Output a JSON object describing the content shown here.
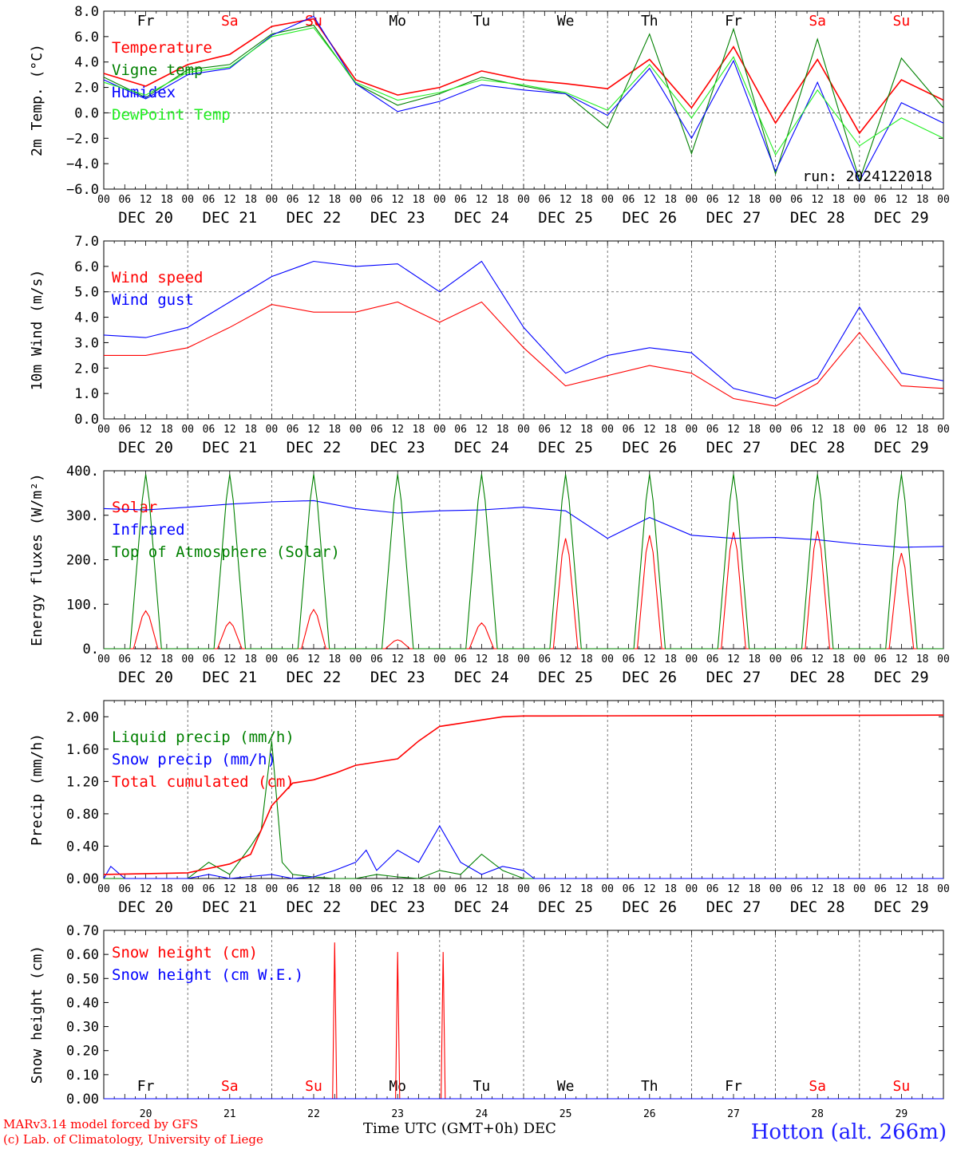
{
  "footer": {
    "model": "MARv3.14 model forced by GFS",
    "copyright": "(c) Lab. of Climatology, University of Liege",
    "station": "Hotton (alt. 266m)",
    "xaxis_title": "Time UTC (GMT+0h) DEC"
  },
  "colors": {
    "red": "#ff0000",
    "darkgreen": "#008000",
    "blue": "#0000ff",
    "lightgreen": "#22ee22",
    "black": "#000000"
  },
  "axis": {
    "hour_ticks": [
      "00",
      "06",
      "12",
      "18"
    ],
    "day_labels": [
      "DEC 20",
      "DEC 21",
      "DEC 22",
      "DEC 23",
      "DEC 24",
      "DEC 25",
      "DEC 26",
      "DEC 27",
      "DEC 28",
      "DEC 29"
    ],
    "weekdays": [
      "Fr",
      "Sa",
      "Su",
      "Mo",
      "Tu",
      "We",
      "Th",
      "Fr",
      "Sa",
      "Su"
    ],
    "weekday_colors": [
      "#000000",
      "#ff0000",
      "#ff0000",
      "#000000",
      "#000000",
      "#000000",
      "#000000",
      "#000000",
      "#ff0000",
      "#ff0000"
    ],
    "day_numbers": [
      "20",
      "21",
      "22",
      "23",
      "24",
      "25",
      "26",
      "27",
      "28",
      "29"
    ]
  },
  "chart_data": [
    {
      "type": "line",
      "ylabel": "2m Temp. (°C)",
      "ylim": [
        -6,
        8
      ],
      "yticks": [
        "8.0",
        "6.0",
        "4.0",
        "2.0",
        "0.0",
        "−2.0",
        "−4.0",
        "−6.0"
      ],
      "annotation": "run: 2024122018",
      "reference_line": 0,
      "x_hours": [
        0,
        12,
        24,
        36,
        48,
        60,
        72,
        84,
        96,
        108,
        120,
        132,
        144,
        156,
        168,
        180,
        192,
        204,
        216,
        228,
        240
      ],
      "series": [
        {
          "name": "Temperature",
          "color": "#ff0000",
          "values": [
            3.1,
            2.1,
            3.8,
            4.6,
            6.8,
            7.4,
            2.6,
            1.4,
            2.0,
            3.3,
            2.6,
            2.3,
            1.9,
            4.2,
            0.4,
            5.2,
            -0.8,
            4.2,
            -1.6,
            2.6,
            1.0
          ]
        },
        {
          "name": "Vigne temp",
          "color": "#008000",
          "values": [
            2.8,
            1.2,
            3.4,
            3.8,
            6.2,
            6.9,
            2.3,
            0.6,
            1.5,
            2.8,
            2.1,
            1.5,
            -1.2,
            6.2,
            -3.2,
            6.6,
            -4.8,
            5.8,
            -5.3,
            4.3,
            0.4
          ]
        },
        {
          "name": "Humidex",
          "color": "#0000ff",
          "values": [
            2.6,
            1.1,
            3.0,
            3.5,
            6.1,
            7.6,
            2.3,
            0.1,
            0.9,
            2.2,
            1.8,
            1.5,
            -0.2,
            3.5,
            -2.0,
            4.1,
            -4.6,
            2.4,
            -5.4,
            0.8,
            -0.8
          ]
        },
        {
          "name": "DewPoint Temp",
          "color": "#22ee22",
          "values": [
            2.4,
            1.4,
            3.2,
            3.6,
            6.0,
            6.7,
            2.4,
            1.0,
            1.6,
            2.6,
            2.2,
            1.6,
            0.2,
            3.8,
            -0.4,
            4.4,
            -3.3,
            1.8,
            -2.6,
            -0.4,
            -2.0
          ]
        }
      ]
    },
    {
      "type": "line",
      "ylabel": "10m Wind (m/s)",
      "ylim": [
        0,
        7
      ],
      "yticks": [
        "7.0",
        "6.0",
        "5.0",
        "4.0",
        "3.0",
        "2.0",
        "1.0",
        "0.0"
      ],
      "reference_line": 5,
      "x_hours": [
        0,
        12,
        24,
        36,
        48,
        60,
        72,
        84,
        96,
        108,
        120,
        132,
        144,
        156,
        168,
        180,
        192,
        204,
        216,
        228,
        240
      ],
      "series": [
        {
          "name": "Wind speed",
          "color": "#ff0000",
          "values": [
            2.5,
            2.5,
            2.8,
            3.6,
            4.5,
            4.2,
            4.2,
            4.6,
            3.8,
            4.6,
            2.8,
            1.3,
            1.7,
            2.1,
            1.8,
            0.8,
            0.5,
            1.4,
            3.4,
            1.3,
            1.2
          ]
        },
        {
          "name": "Wind gust",
          "color": "#0000ff",
          "values": [
            3.3,
            3.2,
            3.6,
            4.6,
            5.6,
            6.2,
            6.0,
            6.1,
            5.0,
            6.2,
            3.6,
            1.8,
            2.5,
            2.8,
            2.6,
            1.2,
            0.8,
            1.6,
            4.4,
            1.8,
            1.5
          ]
        }
      ]
    },
    {
      "type": "line",
      "ylabel": "Energy fluxes (W/m²)",
      "ylim": [
        0,
        400
      ],
      "yticks": [
        "400.",
        "300.",
        "200.",
        "100.",
        "0."
      ],
      "x_hours": [
        0,
        12,
        24,
        36,
        48,
        60,
        72,
        84,
        96,
        108,
        120,
        132,
        144,
        156,
        168,
        180,
        192,
        204,
        216,
        228,
        240
      ],
      "series": [
        {
          "name": "Solar",
          "color": "#ff0000",
          "peaks": [
            85,
            60,
            88,
            20,
            58,
            248,
            255,
            262,
            265,
            215
          ]
        },
        {
          "name": "Infrared",
          "color": "#0000ff",
          "values": [
            315,
            312,
            318,
            325,
            330,
            333,
            315,
            305,
            310,
            312,
            318,
            310,
            248,
            295,
            255,
            248,
            250,
            245,
            235,
            228,
            230
          ]
        },
        {
          "name": "Top of Atmosphere (Solar)",
          "color": "#008000",
          "peaks": [
            392,
            392,
            392,
            392,
            392,
            392,
            392,
            392,
            392,
            392
          ]
        }
      ]
    },
    {
      "type": "line",
      "ylabel": "Precip (mm/h)",
      "ylim": [
        0,
        2.2
      ],
      "yticks": [
        "2.00",
        "1.60",
        "1.20",
        "0.80",
        "0.40",
        "0.00"
      ],
      "series": [
        {
          "name": "Liquid precip (mm/h)",
          "color": "#008000",
          "x_hours": [
            0,
            24,
            30,
            36,
            42,
            45,
            48,
            51,
            54,
            60,
            66,
            72,
            78,
            84,
            90,
            96,
            102,
            108,
            114,
            120,
            240
          ],
          "values": [
            0,
            0,
            0.2,
            0.05,
            0.4,
            0.6,
            1.7,
            0.2,
            0.05,
            0.02,
            0,
            0,
            0.05,
            0.02,
            0,
            0.1,
            0.05,
            0.3,
            0.1,
            0,
            0
          ]
        },
        {
          "name": "Snow precip (mm/h)",
          "color": "#0000ff",
          "x_hours": [
            0,
            2,
            6,
            24,
            30,
            36,
            48,
            54,
            60,
            66,
            72,
            75,
            78,
            84,
            90,
            96,
            102,
            108,
            114,
            120,
            123,
            240
          ],
          "values": [
            0,
            0.15,
            0,
            0,
            0.05,
            0,
            0.05,
            0,
            0.02,
            0.1,
            0.2,
            0.35,
            0.1,
            0.35,
            0.2,
            0.65,
            0.2,
            0.05,
            0.15,
            0.1,
            0,
            0
          ]
        },
        {
          "name": "Total cumulated (cm)",
          "color": "#ff0000",
          "x_hours": [
            0,
            24,
            36,
            42,
            48,
            54,
            60,
            66,
            72,
            84,
            90,
            96,
            102,
            108,
            114,
            120,
            126,
            240
          ],
          "values": [
            0.05,
            0.07,
            0.18,
            0.3,
            0.9,
            1.18,
            1.22,
            1.3,
            1.4,
            1.48,
            1.7,
            1.88,
            1.92,
            1.96,
            2.0,
            2.01,
            2.01,
            2.02
          ]
        }
      ]
    },
    {
      "type": "line",
      "ylabel": "Snow height (cm)",
      "ylim": [
        0,
        0.7
      ],
      "yticks": [
        "0.70",
        "0.60",
        "0.50",
        "0.40",
        "0.30",
        "0.20",
        "0.10",
        "0.00"
      ],
      "series": [
        {
          "name": "Snow height (cm)",
          "color": "#ff0000",
          "spikes": [
            {
              "hour": 66,
              "value": 0.65
            },
            {
              "hour": 84,
              "value": 0.61
            },
            {
              "hour": 97,
              "value": 0.61
            }
          ]
        },
        {
          "name": "Snow height (cm W.E.)",
          "color": "#0000ff",
          "values": [
            0,
            0
          ]
        }
      ]
    }
  ]
}
